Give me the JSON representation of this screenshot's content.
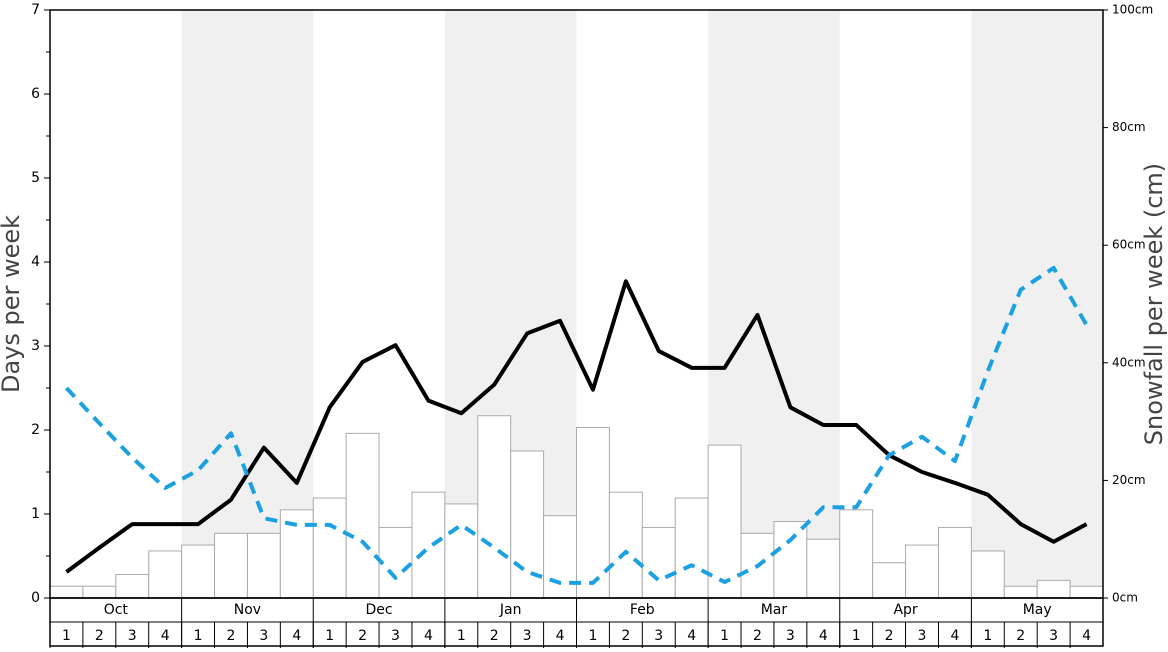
{
  "chart_data": {
    "type": "bar-line",
    "y_label": "Days per week",
    "y2_label": "Snowfall per week (cm)",
    "months": [
      "Oct",
      "Nov",
      "Dec",
      "Jan",
      "Feb",
      "Mar",
      "Apr",
      "May"
    ],
    "categories": [
      "1",
      "2",
      "3",
      "4",
      "1",
      "2",
      "3",
      "4",
      "1",
      "2",
      "3",
      "4",
      "1",
      "2",
      "3",
      "4",
      "1",
      "2",
      "3",
      "4",
      "1",
      "2",
      "3",
      "4",
      "1",
      "2",
      "3",
      "4",
      "1",
      "2",
      "3",
      "4"
    ],
    "ylim": [
      0,
      7
    ],
    "yticks": [
      0,
      1,
      2,
      3,
      4,
      5,
      6,
      7
    ],
    "y2lim": [
      0,
      100
    ],
    "y2ticks": [
      {
        "value": 0,
        "label": "0cm"
      },
      {
        "value": 20,
        "label": "20cm"
      },
      {
        "value": 40,
        "label": "40cm"
      },
      {
        "value": 60,
        "label": "60cm"
      },
      {
        "value": 80,
        "label": "80cm"
      },
      {
        "value": 100,
        "label": "100cm"
      }
    ],
    "series": [
      {
        "type": "bar",
        "axis": "y2",
        "color": "#ffffff",
        "values": [
          2,
          2,
          4,
          8,
          9,
          11,
          11,
          15,
          17,
          28,
          12,
          18,
          16,
          31,
          25,
          14,
          29,
          18,
          12,
          17,
          26,
          11,
          13,
          10,
          15,
          6,
          9,
          12,
          8,
          2,
          3,
          2
        ]
      },
      {
        "type": "line",
        "color": "#000000",
        "values": [
          0.31,
          0.6,
          0.88,
          0.88,
          0.88,
          1.17,
          1.79,
          1.37,
          2.27,
          2.81,
          3.01,
          2.35,
          2.2,
          2.54,
          3.15,
          3.3,
          2.48,
          3.77,
          2.94,
          2.74,
          2.74,
          3.37,
          2.27,
          2.06,
          2.06,
          1.7,
          1.5,
          1.37,
          1.23,
          0.88,
          0.67,
          0.88
        ]
      },
      {
        "type": "line",
        "dashed": true,
        "color": "#1ba1e2",
        "values": [
          2.5,
          2.08,
          1.67,
          1.31,
          1.52,
          1.96,
          0.95,
          0.87,
          0.87,
          0.67,
          0.24,
          0.6,
          0.87,
          0.6,
          0.31,
          0.18,
          0.18,
          0.55,
          0.21,
          0.39,
          0.19,
          0.38,
          0.69,
          1.08,
          1.08,
          1.7,
          1.92,
          1.63,
          2.7,
          3.67,
          3.93,
          3.25
        ]
      }
    ]
  }
}
